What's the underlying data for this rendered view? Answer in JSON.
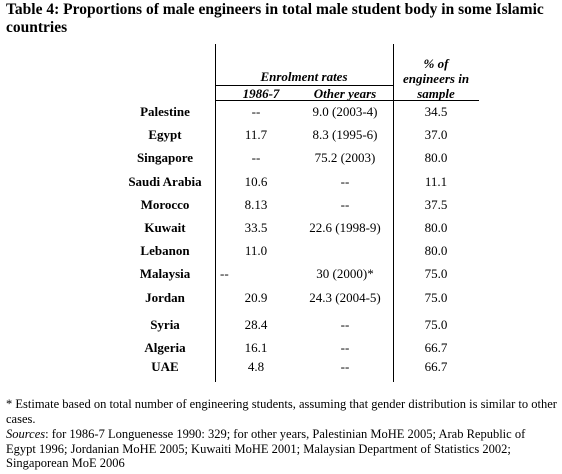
{
  "title": "Table 4: Proportions of male engineers in total male student body in some Islamic countries",
  "headers": {
    "group": "Enrolment rates",
    "col1": "1986-7",
    "col2": "Other years",
    "col3_line1": "% of",
    "col3_line2": "engineers in",
    "col3_line3": "sample"
  },
  "rows": [
    {
      "country": "Palestine",
      "r1986": "--",
      "other": "9.0 (2003-4)",
      "pct": "34.5"
    },
    {
      "country": "Egypt",
      "r1986": "11.7",
      "other": "8.3 (1995-6)",
      "pct": "37.0"
    },
    {
      "country": "Singapore",
      "r1986": "--",
      "other": "75.2 (2003)",
      "pct": "80.0"
    },
    {
      "country": "Saudi Arabia",
      "r1986": "10.6",
      "other": "--",
      "pct": "11.1"
    },
    {
      "country": "Morocco",
      "r1986": "8.13",
      "other": "--",
      "pct": "37.5"
    },
    {
      "country": "Kuwait",
      "r1986": "33.5",
      "other": "22.6 (1998-9)",
      "pct": "80.0"
    },
    {
      "country": "Lebanon",
      "r1986": "11.0",
      "other": "",
      "pct": "80.0"
    },
    {
      "country": "Malaysia",
      "r1986": "--",
      "other": "30 (2000)*",
      "pct": "75.0"
    },
    {
      "country": "Jordan",
      "r1986": "20.9",
      "other": "24.3 (2004-5)",
      "pct": "75.0"
    },
    {
      "country": "Syria",
      "r1986": "28.4",
      "other": "--",
      "pct": "75.0"
    },
    {
      "country": "Algeria",
      "r1986": "16.1",
      "other": "--",
      "pct": "66.7"
    },
    {
      "country": "UAE",
      "r1986": "4.8",
      "other": "--",
      "pct": "66.7"
    }
  ],
  "footnote": "* Estimate based on total number of engineering students, assuming that gender distribution is similar to other cases.",
  "sources_label": "Sources",
  "sources_text": ": for 1986-7 Longuenesse 1990: 329; for other years, Palestinian MoHE 2005; Arab Republic of Egypt 1996; Jordanian MoHE 2005; Kuwaiti MoHE 2001; Malaysian Department of Statistics 2002; Singaporean MoE 2006"
}
